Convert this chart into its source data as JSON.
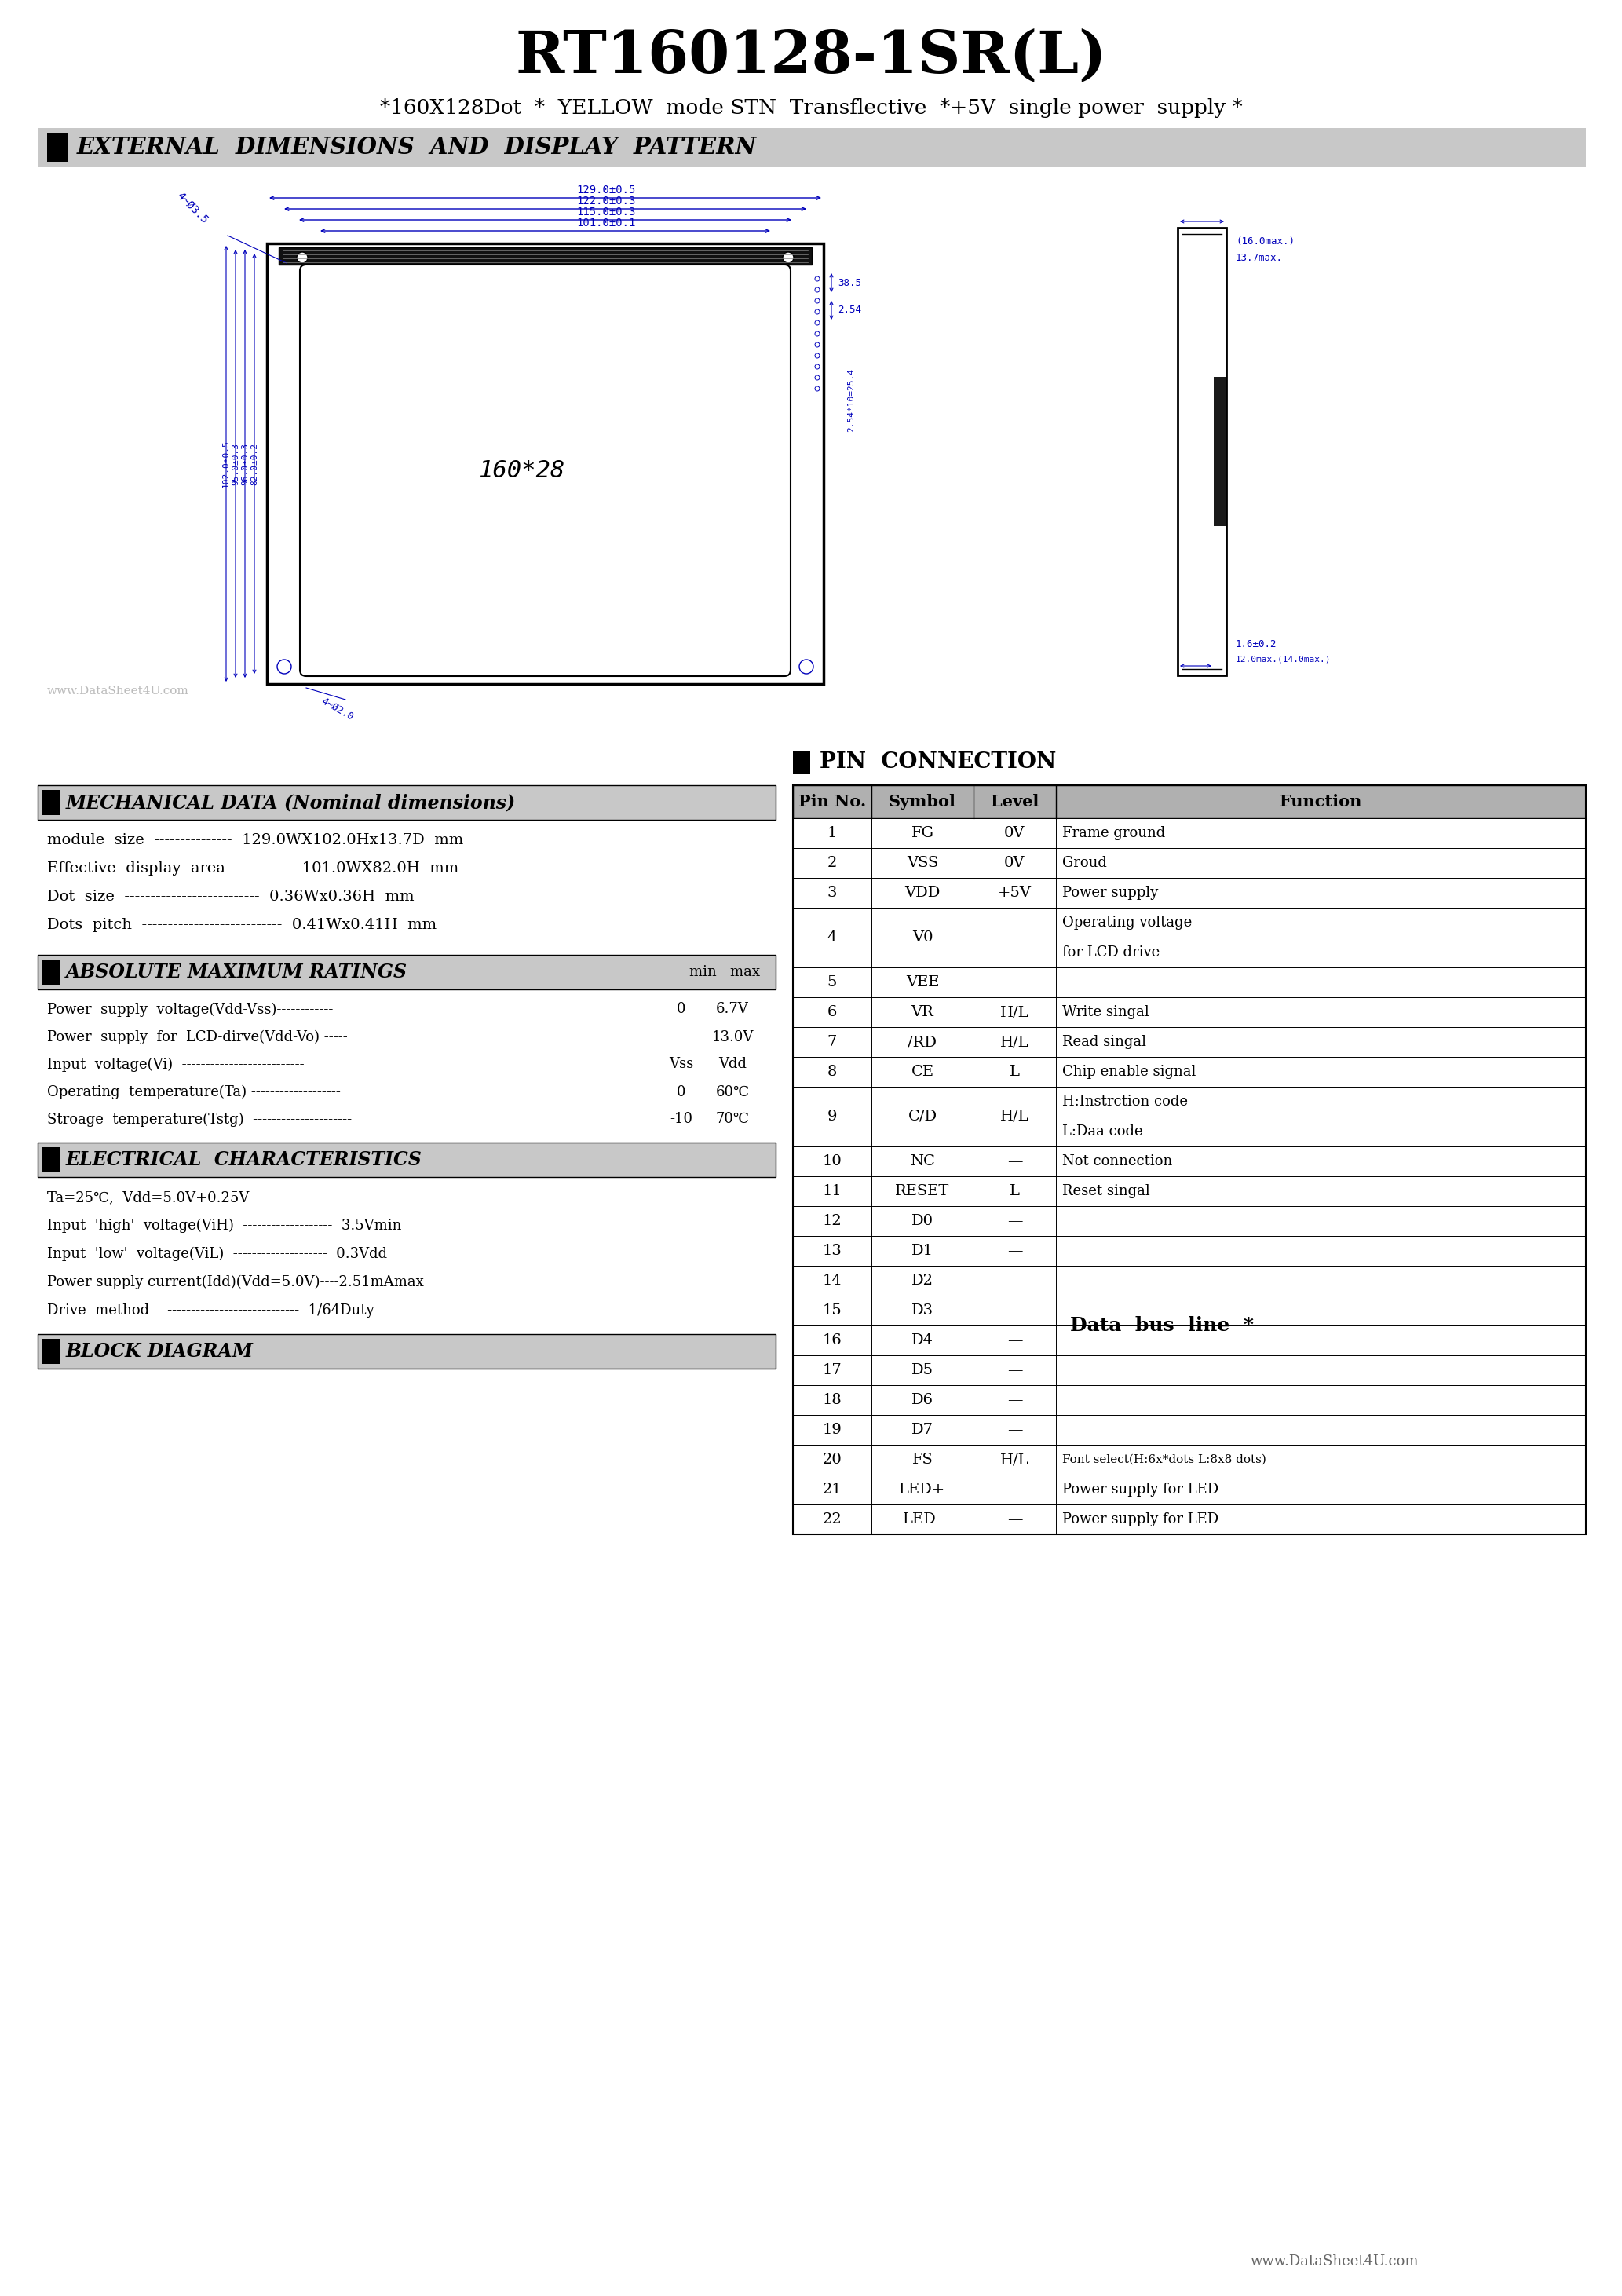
{
  "title": "RT160128-1SR(L)",
  "subtitle": "*160X128Dot  *  YELLOW  mode STN  Transflective  *+5V  single power  supply *",
  "section1_title": "EXTERNAL  DIMENSIONS  AND  DISPLAY  PATTERN",
  "section2_title": "MECHANICAL DATA (Nominal dimensions)",
  "section3_title": "ABSOLUTE MAXIMUM RATINGS",
  "section4_title": "ELECTRICAL  CHARACTERISTICS",
  "section5_title": "BLOCK DIAGRAM",
  "section6_title": "PIN  CONNECTION",
  "mech_data": [
    "module  size  ---------------  129.0WX102.0Hx13.7D  mm",
    "Effective  display  area  -----------  101.0WX82.0H  mm",
    "Dot  size  --------------------------  0.36Wx0.36H  mm",
    "Dots  pitch  ---------------------------  0.41Wx0.41H  mm"
  ],
  "abs_max_min_label": "min    max",
  "abs_max_data": [
    [
      "Power  supply  voltage(Vdd-Vss)------------  ",
      "0",
      "6.7V"
    ],
    [
      "Power  supply  for  LCD-dirve(Vdd-Vo) -----  ",
      "",
      "13.0V"
    ],
    [
      "Input  voltage(Vi)  --------------------------  ",
      "Vss",
      "Vdd"
    ],
    [
      "Operating  temperature(Ta) -------------------  ",
      "0",
      "60℃"
    ],
    [
      "Stroage  temperature(Tstg)  ---------------------",
      "-10",
      "70℃"
    ]
  ],
  "elec_char_header": "Ta=25℃,  Vdd=5.0V+0.25V",
  "elec_char_data": [
    "Input  'high'  voltage(ViH)  -------------------  3.5Vmin",
    "Input  'low'  voltage(ViL)  --------------------  0.3Vdd",
    "Power supply current(Idd)(Vdd=5.0V)----2.51mAmax",
    "Drive  method    ----------------------------  1/64Duty"
  ],
  "pin_table_headers": [
    "Pin No.",
    "Symbol",
    "Level",
    "Function"
  ],
  "pin_table_data": [
    [
      "1",
      "FG",
      "0V",
      "Frame ground",
      false
    ],
    [
      "2",
      "VSS",
      "0V",
      "Groud",
      false
    ],
    [
      "3",
      "VDD",
      "+5V",
      "Power supply",
      false
    ],
    [
      "4",
      "V0",
      "—",
      "Operating voltage\nfor LCD drive",
      true
    ],
    [
      "5",
      "VEE",
      "",
      "",
      false
    ],
    [
      "6",
      "VR",
      "H/L",
      "Write singal",
      false
    ],
    [
      "7",
      "/RD",
      "H/L",
      "Read singal",
      false
    ],
    [
      "8",
      "CE",
      "L",
      "Chip enable signal",
      false
    ],
    [
      "9",
      "C/D",
      "H/L",
      "H:Instrction code\nL:Daa code",
      true
    ],
    [
      "10",
      "NC",
      "—",
      "Not connection",
      false
    ],
    [
      "11",
      "RESET",
      "L",
      "Reset singal",
      false
    ],
    [
      "12",
      "D0",
      "—",
      "",
      false
    ],
    [
      "13",
      "D1",
      "—",
      "",
      false
    ],
    [
      "14",
      "D2",
      "—",
      "",
      false
    ],
    [
      "15",
      "D3",
      "—",
      "",
      false
    ],
    [
      "16",
      "D4",
      "—",
      "",
      false
    ],
    [
      "17",
      "D5",
      "—",
      "",
      false
    ],
    [
      "18",
      "D6",
      "—",
      "",
      false
    ],
    [
      "19",
      "D7",
      "—",
      "",
      false
    ],
    [
      "20",
      "FS",
      "H/L",
      "Font select(H:6x*dots L:8x8 dots)",
      false
    ],
    [
      "21",
      "LED+",
      "—",
      "Power supply for LED",
      false
    ],
    [
      "22",
      "LED-",
      "—",
      "Power supply for LED",
      false
    ]
  ],
  "watermark": "www.DataSheet4U.com",
  "footer": "www.DataSheet4U.com",
  "bg_color": "#ffffff",
  "header_bg": "#c8c8c8",
  "table_header_bg": "#b0b0b0",
  "blue_color": "#0000bb",
  "black_color": "#000000"
}
